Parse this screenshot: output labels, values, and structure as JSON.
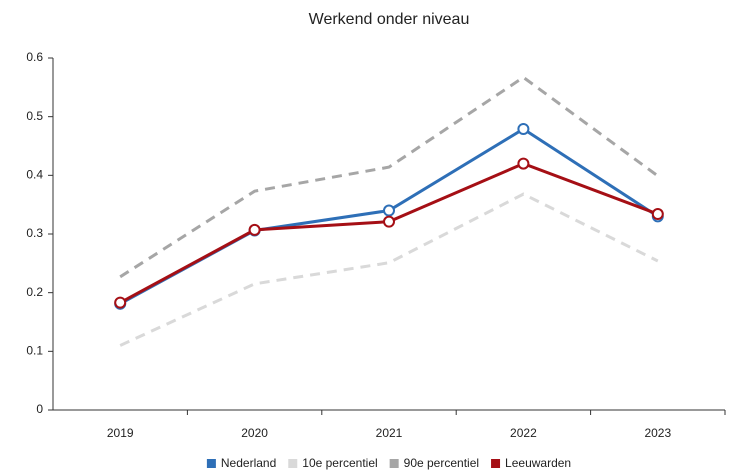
{
  "chart_data": {
    "type": "line",
    "title": "Werkend onder niveau",
    "categories": [
      "2019",
      "2020",
      "2021",
      "2022",
      "2023"
    ],
    "series": [
      {
        "name": "Nederland",
        "color": "#2e6fb7",
        "dashed": false,
        "markers": true,
        "values": [
          0.181,
          0.306,
          0.34,
          0.479,
          0.33
        ]
      },
      {
        "name": "10e percentiel",
        "color": "#d9d9d9",
        "dashed": true,
        "markers": false,
        "values": [
          0.11,
          0.215,
          0.251,
          0.368,
          0.254
        ]
      },
      {
        "name": "90e percentiel",
        "color": "#a6a6a6",
        "dashed": true,
        "markers": false,
        "values": [
          0.227,
          0.373,
          0.414,
          0.567,
          0.399
        ]
      },
      {
        "name": "Leeuwarden",
        "color": "#a50f15",
        "dashed": false,
        "markers": true,
        "values": [
          0.183,
          0.307,
          0.321,
          0.42,
          0.334
        ]
      }
    ],
    "ylim": [
      0,
      0.6
    ],
    "yticks": [
      0,
      0.1,
      0.2,
      0.3,
      0.4,
      0.5,
      0.6
    ],
    "grid": false,
    "legend": "bottom"
  }
}
